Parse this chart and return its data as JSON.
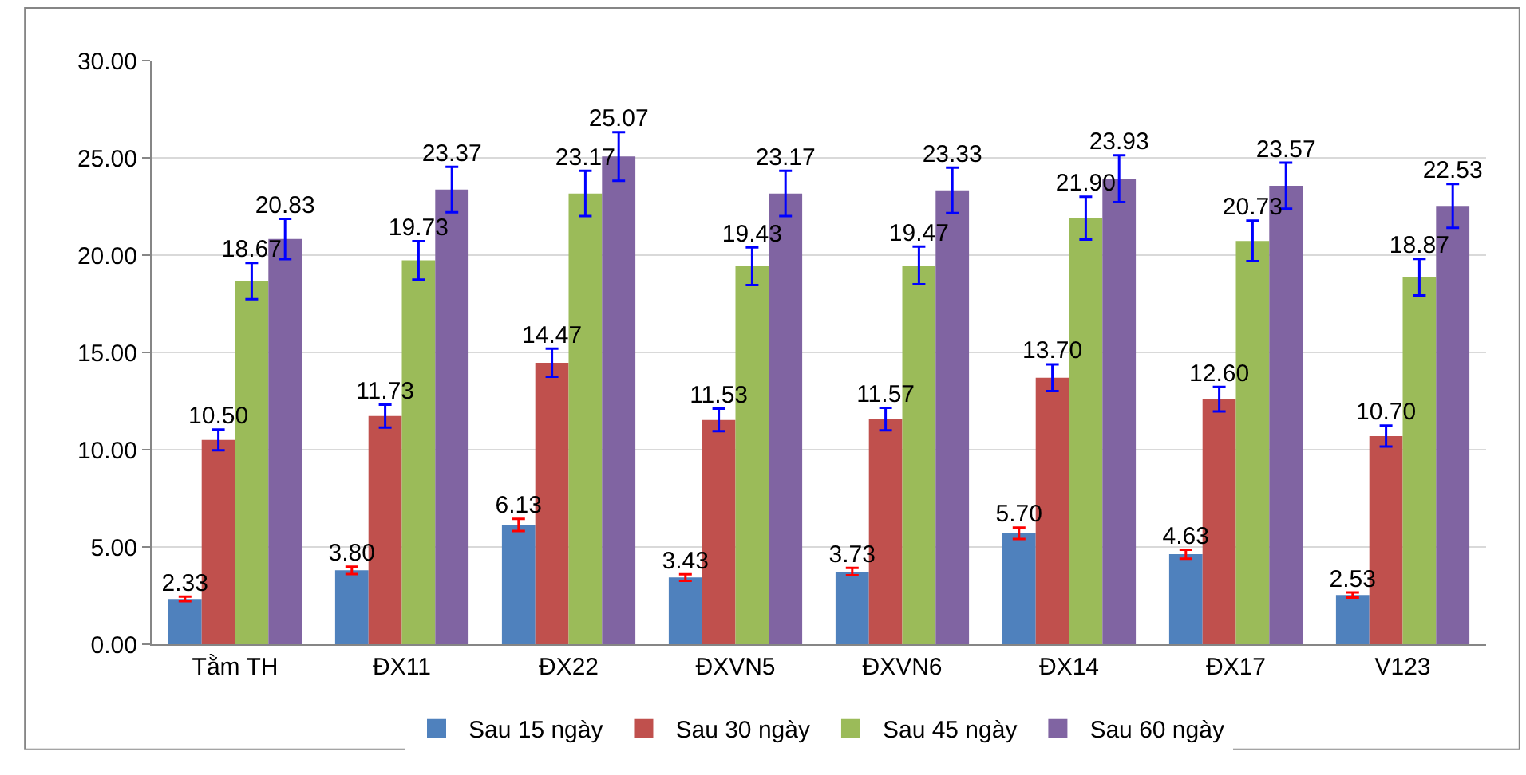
{
  "chart_data": {
    "type": "bar",
    "categories": [
      "Tằm TH",
      "ĐX11",
      "ĐX22",
      "ĐXVN5",
      "ĐXVN6",
      "ĐX14",
      "ĐX17",
      "V123"
    ],
    "series": [
      {
        "name": "Sau 15 ngày",
        "color": "#4f81bd",
        "values": [
          2.33,
          3.8,
          6.13,
          3.43,
          3.73,
          5.7,
          4.63,
          2.53
        ],
        "value_labels": [
          "2.33",
          "3.80",
          "6.13",
          "3.43",
          "3.73",
          "5.70",
          "4.63",
          "2.53"
        ],
        "errors": [
          0.12,
          0.19,
          0.31,
          0.17,
          0.19,
          0.29,
          0.23,
          0.13
        ]
      },
      {
        "name": "Sau 30 ngày",
        "color": "#c0504d",
        "values": [
          10.5,
          11.73,
          14.47,
          11.53,
          11.57,
          13.7,
          12.6,
          10.7
        ],
        "value_labels": [
          "10.50",
          "11.73",
          "14.47",
          "11.53",
          "11.57",
          "13.70",
          "12.60",
          "10.70"
        ],
        "errors": [
          0.53,
          0.59,
          0.72,
          0.58,
          0.58,
          0.69,
          0.63,
          0.54
        ]
      },
      {
        "name": "Sau 45 ngày",
        "color": "#9bbb59",
        "values": [
          18.67,
          19.73,
          23.17,
          19.43,
          19.47,
          21.9,
          20.73,
          18.87
        ],
        "value_labels": [
          "18.67",
          "19.73",
          "23.17",
          "19.43",
          "19.47",
          "21.90",
          "20.73",
          "18.87"
        ],
        "errors": [
          0.93,
          0.99,
          1.16,
          0.97,
          0.97,
          1.1,
          1.04,
          0.94
        ]
      },
      {
        "name": "Sau 60 ngày",
        "color": "#8064a2",
        "values": [
          20.83,
          23.37,
          25.07,
          23.17,
          23.33,
          23.93,
          23.57,
          22.53
        ],
        "value_labels": [
          "20.83",
          "23.37",
          "25.07",
          "23.17",
          "23.33",
          "23.93",
          "23.57",
          "22.53"
        ],
        "errors": [
          1.04,
          1.17,
          1.25,
          1.16,
          1.17,
          1.2,
          1.18,
          1.13
        ]
      }
    ],
    "ylim": [
      0,
      30
    ],
    "yticks": [
      {
        "value": 0,
        "label": "0.00"
      },
      {
        "value": 5,
        "label": "5.00"
      },
      {
        "value": 10,
        "label": "10.00"
      },
      {
        "value": 15,
        "label": "15.00"
      },
      {
        "value": 20,
        "label": "20.00"
      },
      {
        "value": 25,
        "label": "25.00"
      },
      {
        "value": 30,
        "label": "30.00"
      }
    ],
    "grid": "y",
    "legend": "bottom"
  }
}
